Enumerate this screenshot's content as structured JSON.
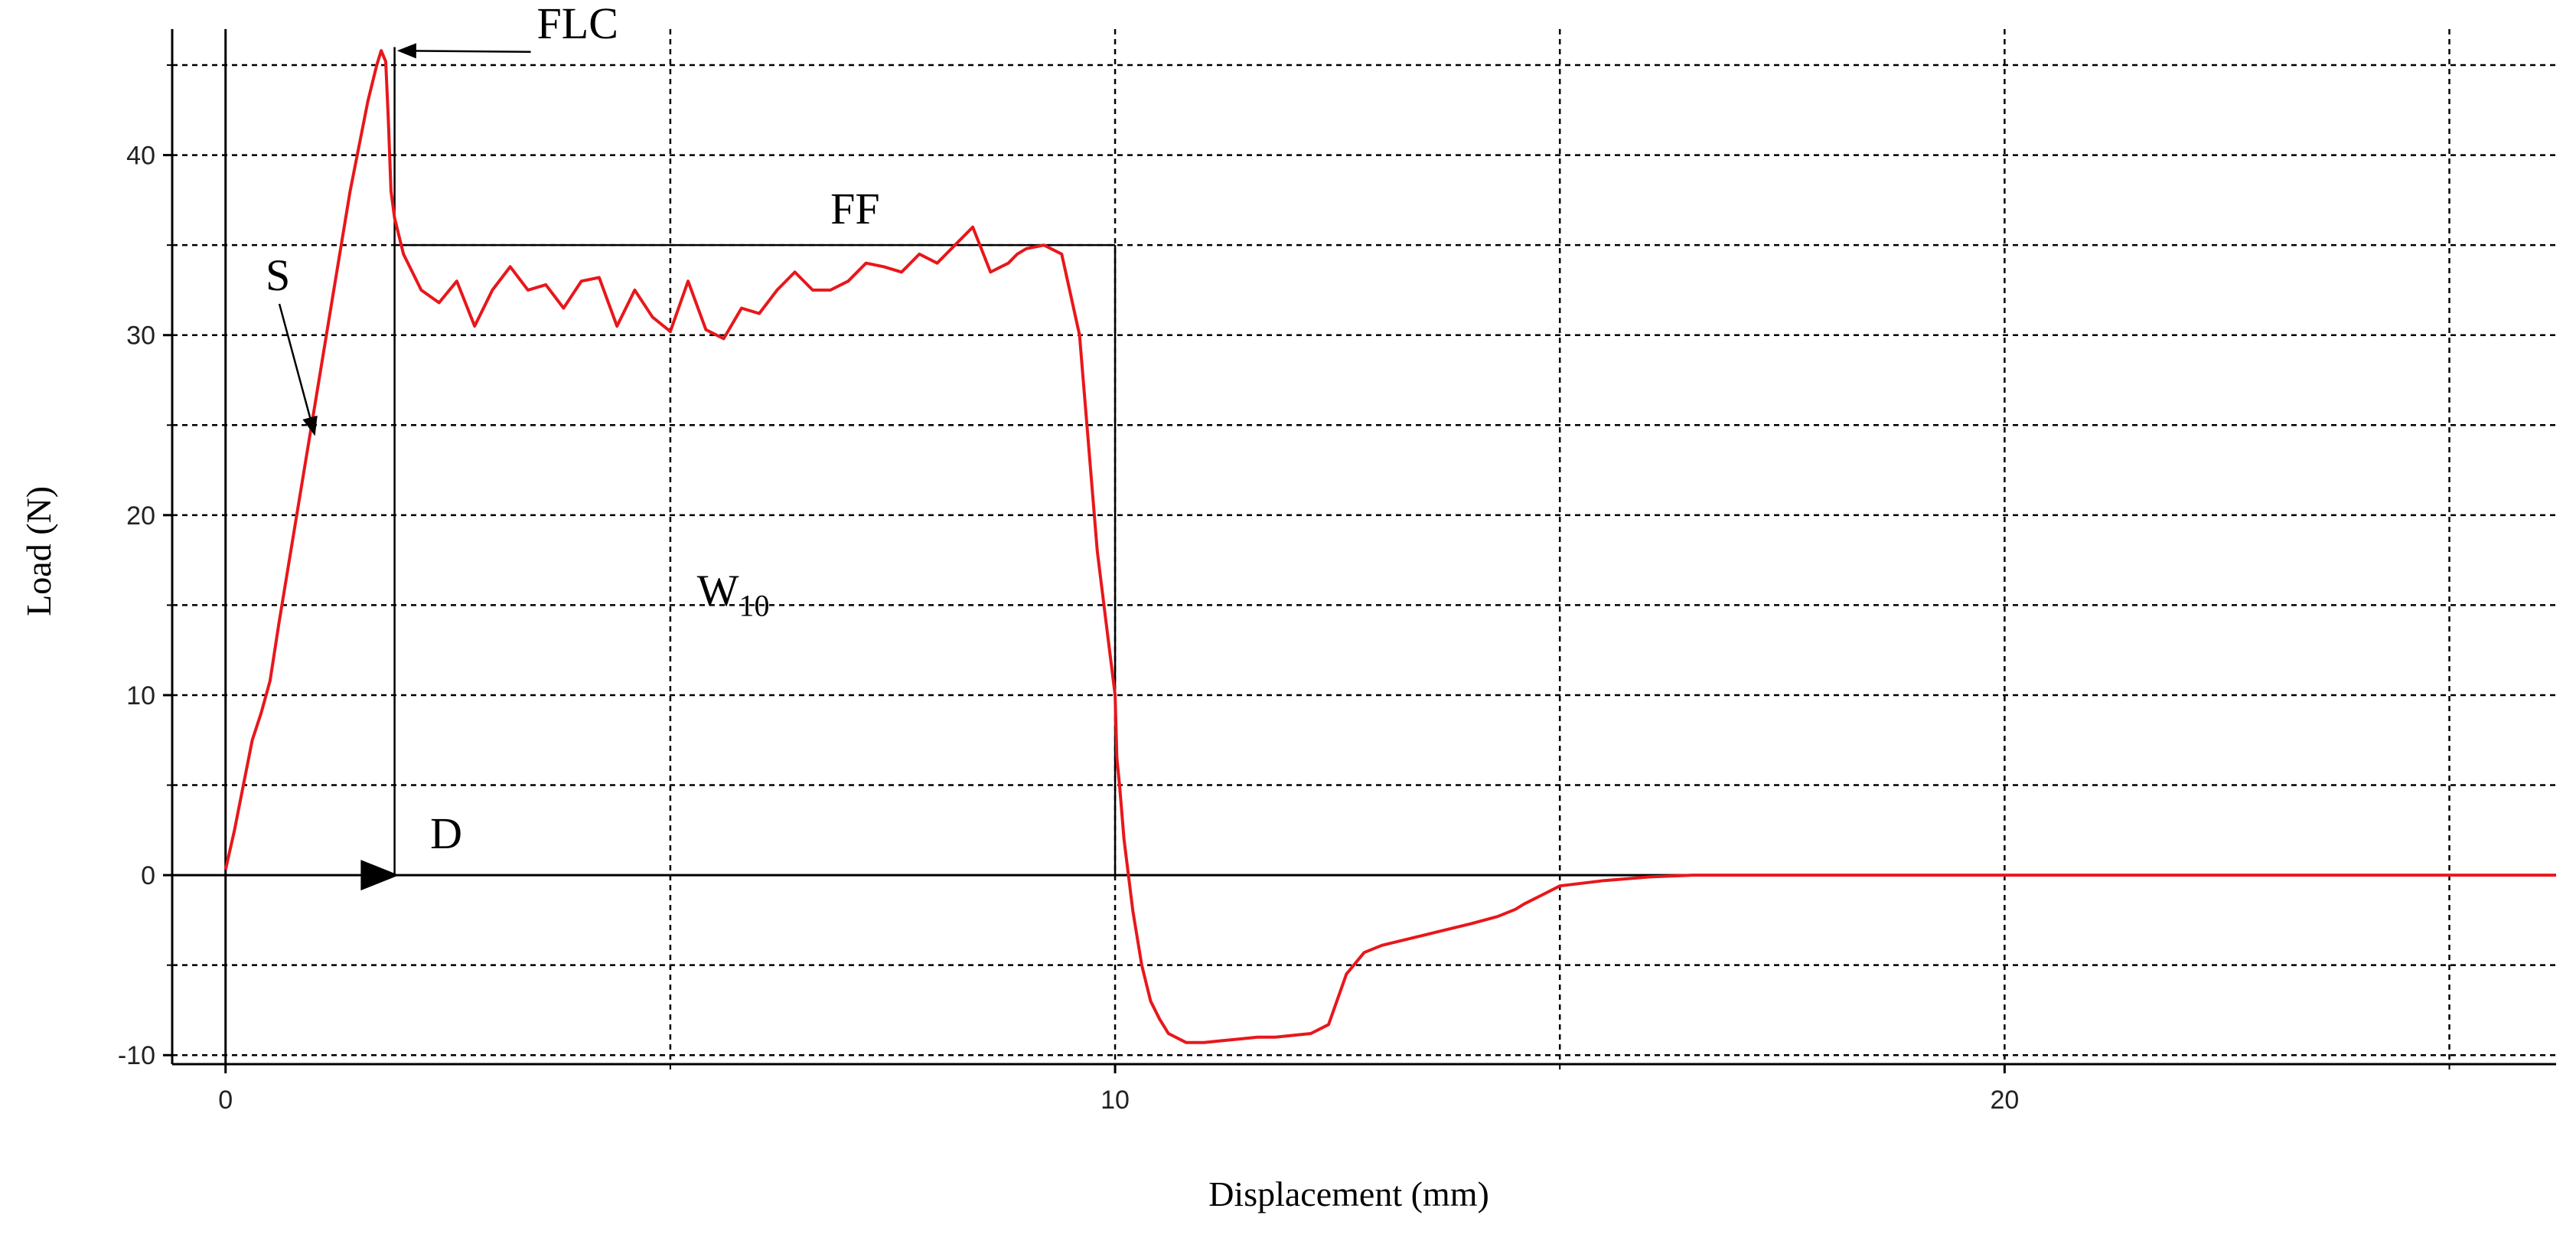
{
  "chart_data": {
    "type": "line",
    "title": "",
    "xlabel": "Displacement (mm)",
    "ylabel": "Load (N)",
    "xlim": [
      -0.6,
      26.2
    ],
    "ylim": [
      -10.5,
      47
    ],
    "x_ticks": [
      0,
      10,
      20
    ],
    "y_ticks": [
      -10,
      0,
      10,
      20,
      30,
      40
    ],
    "x_grid": [
      5,
      15,
      25
    ],
    "y_grid": [
      -10,
      -5,
      5,
      15,
      25,
      35,
      45
    ],
    "grid": true,
    "grid_style": "dotted",
    "legend": "none",
    "series_color": "#e8171b",
    "series": [
      {
        "x": [
          0,
          0.1,
          0.2,
          0.3,
          0.4,
          0.5,
          0.6,
          0.8,
          1.0,
          1.2,
          1.4,
          1.6,
          1.7,
          1.75,
          1.8,
          1.83,
          1.86,
          1.9,
          1.95,
          2.0,
          2.2,
          2.4,
          2.6,
          2.8,
          3.0,
          3.2,
          3.4,
          3.6,
          3.8,
          4.0,
          4.2,
          4.4,
          4.6,
          4.8,
          5.0,
          5.2,
          5.4,
          5.6,
          5.8,
          6.0,
          6.2,
          6.4,
          6.6,
          6.8,
          7.0,
          7.2,
          7.4,
          7.6,
          7.8,
          8.0,
          8.2,
          8.4,
          8.6,
          8.8,
          8.9,
          9.0,
          9.2,
          9.4,
          9.6,
          9.8,
          9.9,
          10.0,
          10.02,
          10.05,
          10.1,
          10.2,
          10.3,
          10.4,
          10.5,
          10.6,
          10.8,
          11.0,
          11.2,
          11.4,
          11.6,
          11.8,
          12.0,
          12.2,
          12.4,
          12.6,
          12.8,
          13.0,
          13.5,
          14.0,
          14.3,
          14.5,
          14.6,
          14.8,
          15.0,
          15.5,
          16.0,
          16.5,
          17.0,
          17.5,
          18.0,
          18.5,
          19.0,
          19.5,
          20.0,
          21.0,
          22.0,
          23.0,
          24.0,
          25.0,
          26.2
        ],
        "y": [
          0.3,
          2.5,
          5.0,
          7.5,
          9.0,
          10.8,
          14.0,
          20.0,
          26.0,
          32.0,
          38.0,
          43.0,
          45.0,
          45.8,
          45.2,
          42.0,
          38.0,
          36.5,
          35.5,
          34.5,
          32.5,
          31.8,
          33.0,
          30.5,
          32.5,
          33.8,
          32.5,
          32.8,
          31.5,
          33.0,
          33.2,
          30.5,
          32.5,
          31.0,
          30.2,
          33.0,
          30.3,
          29.8,
          31.5,
          31.2,
          32.5,
          33.5,
          32.5,
          32.5,
          33.0,
          34.0,
          33.8,
          33.5,
          34.5,
          34.0,
          35.0,
          36.0,
          33.5,
          34.0,
          34.5,
          34.8,
          35.0,
          34.5,
          30.0,
          18.0,
          14.0,
          10.0,
          6.5,
          5.0,
          2.0,
          -2.0,
          -5.0,
          -7.0,
          -8.0,
          -8.8,
          -9.3,
          -9.3,
          -9.2,
          -9.1,
          -9.0,
          -9.0,
          -8.9,
          -8.8,
          -8.3,
          -5.5,
          -4.3,
          -3.9,
          -3.3,
          -2.7,
          -2.3,
          -1.9,
          -1.6,
          -1.1,
          -0.6,
          -0.3,
          -0.1,
          0.0,
          0.0,
          0.0,
          0.0,
          0.0,
          0.0,
          0.0,
          0.0,
          0.0,
          0.0,
          0.0,
          0.0,
          0.0,
          0.0
        ]
      }
    ],
    "reference_lines": [
      {
        "from": [
          1.9,
          46.0
        ],
        "to": [
          1.9,
          0
        ]
      },
      {
        "from": [
          1.9,
          35.0
        ],
        "to": [
          10.0,
          35.0
        ]
      },
      {
        "from": [
          10.0,
          35.0
        ],
        "to": [
          10.0,
          0
        ]
      }
    ],
    "annotations": [
      {
        "text": "FLC",
        "x": 3.5,
        "y": 46.5,
        "arrow_to": [
          1.95,
          45.8
        ]
      },
      {
        "text": "FF",
        "x": 6.8,
        "y": 36.2
      },
      {
        "text": "S",
        "x": 0.45,
        "y": 32.5,
        "arrow_to": [
          1.0,
          24.5
        ]
      },
      {
        "text": "W",
        "subscript": "10",
        "x": 5.3,
        "y": 15.0
      },
      {
        "text": "D",
        "x": 2.3,
        "y": 1.5,
        "arrow_to": [
          1.95,
          0
        ]
      }
    ]
  }
}
